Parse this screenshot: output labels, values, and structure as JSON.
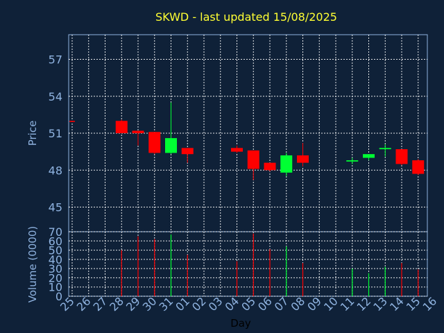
{
  "chart_data": {
    "type": "candlestick",
    "title": "SKWD - last updated 15/08/2025",
    "xlabel": "Day",
    "price_ylabel": "Price",
    "volume_ylabel": "Volume (0000)",
    "x_ticks": [
      "25",
      "26",
      "27",
      "28",
      "29",
      "30",
      "31",
      "01",
      "02",
      "03",
      "04",
      "05",
      "06",
      "07",
      "08",
      "09",
      "10",
      "11",
      "12",
      "13",
      "14",
      "15",
      "16"
    ],
    "price_yticks": [
      45,
      48,
      51,
      54,
      57
    ],
    "price_ylim": [
      43.0,
      59.0
    ],
    "volume_yticks": [
      0,
      10,
      20,
      30,
      40,
      50,
      60,
      70
    ],
    "volume_ylim": [
      0,
      70
    ],
    "grid": true,
    "up_color": "#00ff33",
    "down_color": "#ff0000",
    "candles": [
      {
        "x": "25",
        "open": 52.0,
        "close": 51.95,
        "high": 52.0,
        "low": 51.9,
        "volume": 0
      },
      {
        "x": "28",
        "open": 52.0,
        "close": 51.0,
        "high": 52.1,
        "low": 51.0,
        "volume": 50
      },
      {
        "x": "29",
        "open": 51.2,
        "close": 51.0,
        "high": 51.2,
        "low": 50.0,
        "volume": 65
      },
      {
        "x": "30",
        "open": 51.1,
        "close": 49.4,
        "high": 51.1,
        "low": 49.3,
        "volume": 62
      },
      {
        "x": "31",
        "open": 49.4,
        "close": 50.6,
        "high": 53.5,
        "low": 49.3,
        "volume": 67
      },
      {
        "x": "01",
        "open": 49.8,
        "close": 49.3,
        "high": 49.8,
        "low": 48.6,
        "volume": 45
      },
      {
        "x": "04",
        "open": 49.8,
        "close": 49.5,
        "high": 50.0,
        "low": 49.4,
        "volume": 38
      },
      {
        "x": "05",
        "open": 49.6,
        "close": 48.1,
        "high": 49.6,
        "low": 47.2,
        "volume": 68
      },
      {
        "x": "06",
        "open": 48.6,
        "close": 48.0,
        "high": 48.6,
        "low": 47.9,
        "volume": 51
      },
      {
        "x": "07",
        "open": 47.8,
        "close": 49.2,
        "high": 49.4,
        "low": 47.5,
        "volume": 54
      },
      {
        "x": "08",
        "open": 49.2,
        "close": 48.6,
        "high": 50.2,
        "low": 48.3,
        "volume": 36
      },
      {
        "x": "11",
        "open": 48.7,
        "close": 48.8,
        "high": 49.0,
        "low": 48.5,
        "volume": 30
      },
      {
        "x": "12",
        "open": 49.0,
        "close": 49.3,
        "high": 49.3,
        "low": 48.8,
        "volume": 25
      },
      {
        "x": "13",
        "open": 49.7,
        "close": 49.8,
        "high": 50.1,
        "low": 49.1,
        "volume": 32
      },
      {
        "x": "14",
        "open": 49.7,
        "close": 48.5,
        "high": 49.7,
        "low": 48.4,
        "volume": 36
      },
      {
        "x": "15",
        "open": 48.8,
        "close": 47.7,
        "high": 48.9,
        "low": 47.6,
        "volume": 29
      }
    ]
  }
}
